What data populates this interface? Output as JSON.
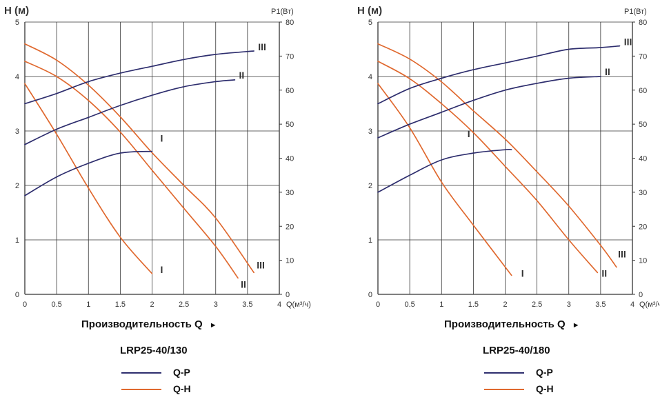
{
  "colors": {
    "qp": "#2e2e6e",
    "qh": "#e0692f",
    "grid": "#333333"
  },
  "charts": [
    {
      "model": "LRP25-40/130",
      "xlabel": "Производительность Q",
      "x_unit": "Q(м³/ч)",
      "y_left_label": "H (м)",
      "y_right_label": "P1(Вт)",
      "legend": [
        {
          "label": "Q-P",
          "series": "qp"
        },
        {
          "label": "Q-H",
          "series": "qh"
        }
      ]
    },
    {
      "model": "LRP25-40/180",
      "xlabel": "Производительность Q",
      "x_unit": "Q(м³/ч)",
      "y_left_label": "H (м)",
      "y_right_label": "P1(Вт)",
      "legend": [
        {
          "label": "Q-P",
          "series": "qp"
        },
        {
          "label": "Q-H",
          "series": "qh"
        }
      ]
    }
  ],
  "chart_data": [
    {
      "type": "line",
      "title": "LRP25-40/130",
      "xlabel": "Производительность Q",
      "x_unit": "Q(м³/ч)",
      "ylabel_left": "H (м)",
      "ylabel_right": "P1(Вт)",
      "xlim": [
        0,
        4
      ],
      "ylim_left": [
        0,
        5
      ],
      "ylim_right": [
        0,
        80
      ],
      "x_ticks": [
        "0",
        "0.5",
        "1",
        "1.5",
        "2",
        "2.5",
        "3",
        "3.5",
        "4"
      ],
      "y_left_ticks": [
        "0",
        "1",
        "2",
        "3",
        "4",
        "5"
      ],
      "y_right_ticks": [
        "0",
        "10",
        "20",
        "30",
        "40",
        "50",
        "60",
        "70",
        "80"
      ],
      "grid": true,
      "series": [
        {
          "name": "Q-H",
          "speed": "I",
          "axis": "left",
          "color": "#e0692f",
          "x": [
            0,
            0.5,
            1,
            1.5,
            2
          ],
          "y": [
            3.87,
            2.94,
            1.95,
            1.05,
            0.38
          ]
        },
        {
          "name": "Q-H",
          "speed": "II",
          "axis": "left",
          "color": "#e0692f",
          "x": [
            0,
            0.5,
            1,
            1.5,
            2,
            2.5,
            3,
            3.35
          ],
          "y": [
            4.28,
            4.0,
            3.56,
            2.98,
            2.28,
            1.58,
            0.88,
            0.3
          ]
        },
        {
          "name": "Q-H",
          "speed": "III",
          "axis": "left",
          "color": "#e0692f",
          "x": [
            0,
            0.5,
            1,
            1.5,
            2,
            2.5,
            3,
            3.6
          ],
          "y": [
            4.6,
            4.3,
            3.84,
            3.26,
            2.6,
            2.0,
            1.4,
            0.4
          ]
        },
        {
          "name": "Q-P",
          "speed": "I",
          "axis": "right",
          "color": "#2e2e6e",
          "x": [
            0,
            0.5,
            1,
            1.5,
            2
          ],
          "y": [
            29,
            34.5,
            38.5,
            41.5,
            42
          ]
        },
        {
          "name": "Q-P",
          "speed": "II",
          "axis": "right",
          "color": "#2e2e6e",
          "x": [
            0,
            0.5,
            1,
            1.5,
            2,
            2.5,
            3,
            3.3
          ],
          "y": [
            44,
            48.5,
            52,
            55.5,
            58.5,
            61,
            62.5,
            63
          ]
        },
        {
          "name": "Q-P",
          "speed": "III",
          "axis": "right",
          "color": "#2e2e6e",
          "x": [
            0,
            0.5,
            1,
            1.5,
            2,
            2.5,
            3,
            3.6
          ],
          "y": [
            56,
            59,
            62.5,
            65,
            67,
            69,
            70.5,
            71.5
          ]
        }
      ],
      "annotations": [
        {
          "text": "I",
          "series": "Q-P I"
        },
        {
          "text": "II",
          "series": "Q-P II"
        },
        {
          "text": "III",
          "series": "Q-P III"
        },
        {
          "text": "I",
          "series": "Q-H I"
        },
        {
          "text": "II",
          "series": "Q-H II"
        },
        {
          "text": "III",
          "series": "Q-H III"
        }
      ]
    },
    {
      "type": "line",
      "title": "LRP25-40/180",
      "xlabel": "Производительность Q",
      "x_unit": "Q(м³/ч)",
      "ylabel_left": "H (м)",
      "ylabel_right": "P1(Вт)",
      "xlim": [
        0,
        4
      ],
      "ylim_left": [
        0,
        5
      ],
      "ylim_right": [
        0,
        80
      ],
      "x_ticks": [
        "0",
        "0.5",
        "1",
        "1.5",
        "2",
        "2.5",
        "3",
        "3.5",
        "4"
      ],
      "y_left_ticks": [
        "0",
        "1",
        "2",
        "3",
        "4",
        "5"
      ],
      "y_right_ticks": [
        "0",
        "10",
        "20",
        "30",
        "40",
        "50",
        "60",
        "70",
        "80"
      ],
      "grid": true,
      "series": [
        {
          "name": "Q-H",
          "speed": "I",
          "axis": "left",
          "color": "#e0692f",
          "x": [
            0,
            0.5,
            1,
            1.5,
            2.1
          ],
          "y": [
            3.87,
            3.06,
            2.06,
            1.27,
            0.35
          ]
        },
        {
          "name": "Q-H",
          "speed": "II",
          "axis": "left",
          "color": "#e0692f",
          "x": [
            0,
            0.5,
            1,
            1.5,
            2,
            2.5,
            3,
            3.45
          ],
          "y": [
            4.28,
            3.96,
            3.5,
            2.97,
            2.35,
            1.72,
            1.0,
            0.4
          ]
        },
        {
          "name": "Q-H",
          "speed": "III",
          "axis": "left",
          "color": "#e0692f",
          "x": [
            0,
            0.5,
            1,
            1.5,
            2,
            2.5,
            3,
            3.5,
            3.75
          ],
          "y": [
            4.6,
            4.32,
            3.9,
            3.37,
            2.85,
            2.25,
            1.62,
            0.9,
            0.5
          ]
        },
        {
          "name": "Q-P",
          "speed": "I",
          "axis": "right",
          "color": "#2e2e6e",
          "x": [
            0,
            0.5,
            1,
            1.5,
            2,
            2.1
          ],
          "y": [
            30,
            35,
            39.5,
            41.5,
            42.5,
            42.5
          ]
        },
        {
          "name": "Q-P",
          "speed": "II",
          "axis": "right",
          "color": "#2e2e6e",
          "x": [
            0,
            0.5,
            1,
            1.5,
            2,
            2.5,
            3,
            3.5
          ],
          "y": [
            46,
            50,
            53.5,
            57,
            60,
            62,
            63.5,
            64
          ]
        },
        {
          "name": "Q-P",
          "speed": "III",
          "axis": "right",
          "color": "#2e2e6e",
          "x": [
            0,
            0.5,
            1,
            1.5,
            2,
            2.5,
            3,
            3.5,
            3.8
          ],
          "y": [
            56,
            60.5,
            63.5,
            66,
            68,
            70,
            72,
            72.5,
            73
          ]
        }
      ],
      "annotations": [
        {
          "text": "I",
          "series": "Q-P I"
        },
        {
          "text": "II",
          "series": "Q-P II"
        },
        {
          "text": "III",
          "series": "Q-P III"
        },
        {
          "text": "I",
          "series": "Q-H I"
        },
        {
          "text": "II",
          "series": "Q-H II"
        },
        {
          "text": "III",
          "series": "Q-H III"
        }
      ]
    }
  ]
}
